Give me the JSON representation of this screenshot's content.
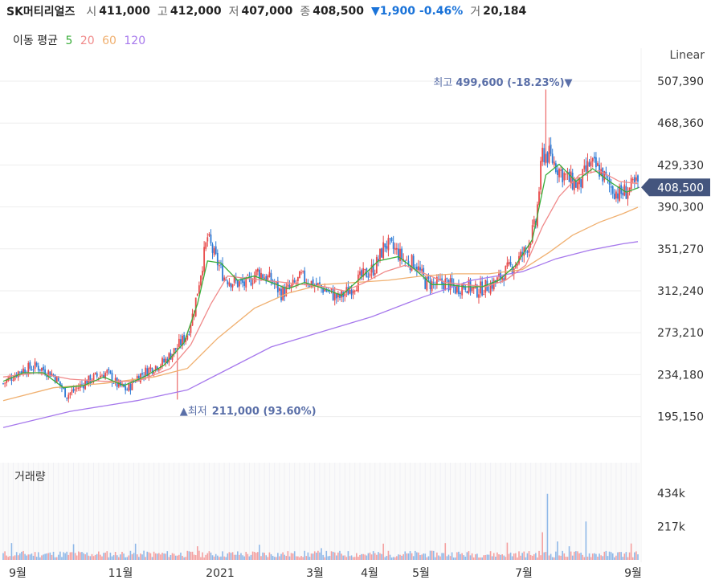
{
  "header": {
    "name": "SK머티리얼즈",
    "open_label": "시",
    "open": "411,000",
    "high_label": "고",
    "high": "412,000",
    "low_label": "저",
    "low": "407,000",
    "close_label": "종",
    "close": "408,500",
    "change": "▼1,900 -0.46%",
    "volume_label": "거",
    "volume": "20,184"
  },
  "ma_legend": {
    "title": "이동 평균",
    "items": [
      {
        "label": "5",
        "color": "#3bae3b"
      },
      {
        "label": "20",
        "color": "#f08a8a"
      },
      {
        "label": "60",
        "color": "#f0b070"
      },
      {
        "label": "120",
        "color": "#a678ec"
      }
    ]
  },
  "scale_mode": "Linear",
  "chart_data": {
    "type": "candlestick",
    "y_ticks": [
      "507,390",
      "468,360",
      "429,330",
      "390,300",
      "351,270",
      "312,240",
      "273,210",
      "234,180",
      "195,150"
    ],
    "y_tick_values": [
      507390,
      468360,
      429330,
      390300,
      351270,
      312240,
      273210,
      234180,
      195150
    ],
    "x_ticks": [
      "9월",
      "11월",
      "2021",
      "3월",
      "4월",
      "5월",
      "7월",
      "9월"
    ],
    "current_price": "408,500",
    "max_annotation": {
      "label": "최고",
      "value": "499,600 (-18.23%)"
    },
    "min_annotation": {
      "label": "최저",
      "value": "211,000 (93.60%)"
    },
    "volume_title": "거래량",
    "volume_ticks": [
      "434k",
      "217k"
    ],
    "volume_tick_values": [
      434000,
      217000
    ],
    "up_color": "#e84a4a",
    "down_color": "#2e7bd6",
    "price_path": [
      [
        0,
        226000
      ],
      [
        10,
        238000
      ],
      [
        20,
        242000
      ],
      [
        30,
        234000
      ],
      [
        38,
        215000
      ],
      [
        48,
        226000
      ],
      [
        55,
        232000
      ],
      [
        62,
        236000
      ],
      [
        68,
        225000
      ],
      [
        74,
        220000
      ],
      [
        80,
        232000
      ],
      [
        88,
        240000
      ],
      [
        96,
        246000
      ],
      [
        103,
        258000
      ],
      [
        110,
        272000
      ],
      [
        114,
        295000
      ],
      [
        118,
        330000
      ],
      [
        122,
        362000
      ],
      [
        126,
        345000
      ],
      [
        132,
        325000
      ],
      [
        138,
        320000
      ],
      [
        145,
        318000
      ],
      [
        152,
        330000
      ],
      [
        160,
        322000
      ],
      [
        166,
        310000
      ],
      [
        172,
        315000
      ],
      [
        178,
        325000
      ],
      [
        186,
        318000
      ],
      [
        194,
        312000
      ],
      [
        200,
        305000
      ],
      [
        206,
        312000
      ],
      [
        214,
        325000
      ],
      [
        222,
        334000
      ],
      [
        228,
        356000
      ],
      [
        234,
        350000
      ],
      [
        240,
        340000
      ],
      [
        246,
        338000
      ],
      [
        252,
        320000
      ],
      [
        258,
        318000
      ],
      [
        264,
        320000
      ],
      [
        270,
        314000
      ],
      [
        276,
        318000
      ],
      [
        282,
        312000
      ],
      [
        288,
        316000
      ],
      [
        294,
        320000
      ],
      [
        300,
        330000
      ],
      [
        306,
        338000
      ],
      [
        312,
        350000
      ],
      [
        318,
        375000
      ],
      [
        322,
        440000
      ],
      [
        326,
        438000
      ],
      [
        332,
        425000
      ],
      [
        338,
        415000
      ],
      [
        344,
        410000
      ],
      [
        350,
        430000
      ],
      [
        356,
        425000
      ],
      [
        362,
        410000
      ],
      [
        368,
        402000
      ],
      [
        373,
        406000
      ],
      [
        379,
        412000
      ]
    ],
    "ma5": [
      [
        0,
        228000
      ],
      [
        12,
        236000
      ],
      [
        24,
        236000
      ],
      [
        36,
        222000
      ],
      [
        48,
        224000
      ],
      [
        60,
        232000
      ],
      [
        72,
        224000
      ],
      [
        84,
        232000
      ],
      [
        96,
        243000
      ],
      [
        108,
        264000
      ],
      [
        116,
        300000
      ],
      [
        122,
        340000
      ],
      [
        130,
        338000
      ],
      [
        140,
        322000
      ],
      [
        150,
        326000
      ],
      [
        160,
        320000
      ],
      [
        170,
        314000
      ],
      [
        180,
        320000
      ],
      [
        192,
        314000
      ],
      [
        202,
        308000
      ],
      [
        212,
        322000
      ],
      [
        224,
        340000
      ],
      [
        236,
        344000
      ],
      [
        246,
        332000
      ],
      [
        256,
        318000
      ],
      [
        266,
        318000
      ],
      [
        276,
        316000
      ],
      [
        286,
        316000
      ],
      [
        296,
        322000
      ],
      [
        306,
        336000
      ],
      [
        316,
        360000
      ],
      [
        324,
        420000
      ],
      [
        332,
        430000
      ],
      [
        342,
        414000
      ],
      [
        352,
        426000
      ],
      [
        362,
        414000
      ],
      [
        372,
        404000
      ],
      [
        379,
        408000
      ]
    ],
    "ma20": [
      [
        0,
        232000
      ],
      [
        20,
        236000
      ],
      [
        40,
        230000
      ],
      [
        60,
        228000
      ],
      [
        80,
        228000
      ],
      [
        100,
        240000
      ],
      [
        112,
        262000
      ],
      [
        124,
        300000
      ],
      [
        134,
        326000
      ],
      [
        144,
        324000
      ],
      [
        156,
        322000
      ],
      [
        168,
        320000
      ],
      [
        180,
        318000
      ],
      [
        192,
        316000
      ],
      [
        204,
        312000
      ],
      [
        216,
        320000
      ],
      [
        228,
        330000
      ],
      [
        240,
        336000
      ],
      [
        252,
        328000
      ],
      [
        264,
        320000
      ],
      [
        276,
        318000
      ],
      [
        288,
        316000
      ],
      [
        300,
        322000
      ],
      [
        312,
        336000
      ],
      [
        322,
        372000
      ],
      [
        332,
        400000
      ],
      [
        344,
        420000
      ],
      [
        356,
        424000
      ],
      [
        368,
        414000
      ],
      [
        379,
        412000
      ]
    ],
    "ma60": [
      [
        0,
        210000
      ],
      [
        30,
        222000
      ],
      [
        60,
        226000
      ],
      [
        90,
        232000
      ],
      [
        110,
        240000
      ],
      [
        128,
        268000
      ],
      [
        150,
        296000
      ],
      [
        170,
        310000
      ],
      [
        190,
        318000
      ],
      [
        210,
        320000
      ],
      [
        230,
        322000
      ],
      [
        250,
        326000
      ],
      [
        270,
        328000
      ],
      [
        290,
        328000
      ],
      [
        310,
        332000
      ],
      [
        326,
        348000
      ],
      [
        340,
        364000
      ],
      [
        356,
        376000
      ],
      [
        370,
        384000
      ],
      [
        379,
        390000
      ]
    ],
    "ma120": [
      [
        0,
        185000
      ],
      [
        40,
        200000
      ],
      [
        80,
        210000
      ],
      [
        110,
        220000
      ],
      [
        130,
        236000
      ],
      [
        160,
        260000
      ],
      [
        190,
        274000
      ],
      [
        220,
        288000
      ],
      [
        250,
        306000
      ],
      [
        280,
        322000
      ],
      [
        310,
        330000
      ],
      [
        330,
        342000
      ],
      [
        350,
        350000
      ],
      [
        370,
        356000
      ],
      [
        379,
        358000
      ]
    ]
  }
}
